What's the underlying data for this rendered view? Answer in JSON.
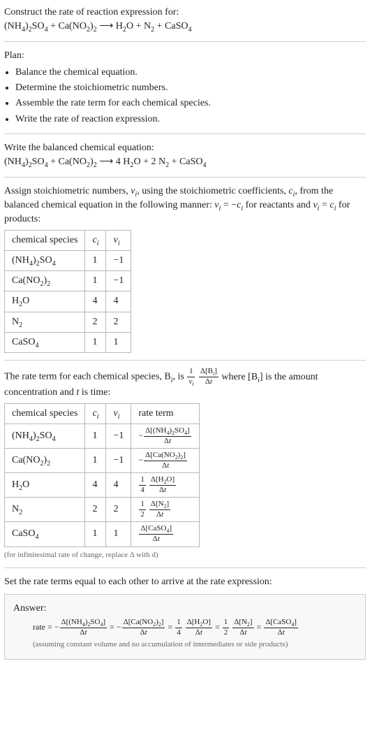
{
  "intro": {
    "title": "Construct the rate of reaction expression for:",
    "equation_html": "(NH<sub>4</sub>)<sub>2</sub>SO<sub>4</sub> + Ca(NO<sub>2</sub>)<sub>2</sub>  ⟶  H<sub>2</sub>O + N<sub>2</sub> + CaSO<sub>4</sub>"
  },
  "plan": {
    "heading": "Plan:",
    "items": [
      "Balance the chemical equation.",
      "Determine the stoichiometric numbers.",
      "Assemble the rate term for each chemical species.",
      "Write the rate of reaction expression."
    ]
  },
  "balanced": {
    "heading": "Write the balanced chemical equation:",
    "equation_html": "(NH<sub>4</sub>)<sub>2</sub>SO<sub>4</sub> + Ca(NO<sub>2</sub>)<sub>2</sub>  ⟶  4 H<sub>2</sub>O + 2 N<sub>2</sub> + CaSO<sub>4</sub>"
  },
  "assign": {
    "text_html": "Assign stoichiometric numbers, <span class='ital'>ν<sub>i</sub></span>, using the stoichiometric coefficients, <span class='ital'>c<sub>i</sub></span>, from the balanced chemical equation in the following manner: <span class='ital'>ν<sub>i</sub></span> = −<span class='ital'>c<sub>i</sub></span> for reactants and <span class='ital'>ν<sub>i</sub></span> = <span class='ital'>c<sub>i</sub></span> for products:",
    "table": {
      "headers": [
        "chemical species",
        "cᵢ",
        "νᵢ"
      ],
      "headers_html": [
        "chemical species",
        "<span class='ital'>c<sub>i</sub></span>",
        "<span class='ital'>ν<sub>i</sub></span>"
      ],
      "rows": [
        {
          "species_html": "(NH<sub>4</sub>)<sub>2</sub>SO<sub>4</sub>",
          "ci": "1",
          "vi": "−1"
        },
        {
          "species_html": "Ca(NO<sub>2</sub>)<sub>2</sub>",
          "ci": "1",
          "vi": "−1"
        },
        {
          "species_html": "H<sub>2</sub>O",
          "ci": "4",
          "vi": "4"
        },
        {
          "species_html": "N<sub>2</sub>",
          "ci": "2",
          "vi": "2"
        },
        {
          "species_html": "CaSO<sub>4</sub>",
          "ci": "1",
          "vi": "1"
        }
      ]
    }
  },
  "rateterm_intro": {
    "pre_html": "The rate term for each chemical species, B<span class='ub'><sub><span class='ital'>i</span></sub></span>, is ",
    "frac_left_num_html": "1",
    "frac_left_den_html": "<span class='ital'>ν<sub>i</sub></span>",
    "frac_right_num_html": "Δ[B<sub><span class='ital'>i</span></sub>]",
    "frac_right_den_html": "Δ<span class='ital'>t</span>",
    "post_html": " where [B<sub><span class='ital'>i</span></sub>] is the amount concentration and <span class='ital'>t</span> is time:"
  },
  "rate_table": {
    "headers_html": [
      "chemical species",
      "<span class='ital'>c<sub>i</sub></span>",
      "<span class='ital'>ν<sub>i</sub></span>",
      "rate term"
    ],
    "rows": [
      {
        "species_html": "(NH<sub>4</sub>)<sub>2</sub>SO<sub>4</sub>",
        "ci": "1",
        "vi": "−1",
        "rate": {
          "sign": "−",
          "coef_num": null,
          "coef_den": null,
          "num_html": "Δ[(NH<sub>4</sub>)<sub>2</sub>SO<sub>4</sub>]",
          "den_html": "Δ<span class='ital'>t</span>"
        }
      },
      {
        "species_html": "Ca(NO<sub>2</sub>)<sub>2</sub>",
        "ci": "1",
        "vi": "−1",
        "rate": {
          "sign": "−",
          "coef_num": null,
          "coef_den": null,
          "num_html": "Δ[Ca(NO<sub>2</sub>)<sub>2</sub>]",
          "den_html": "Δ<span class='ital'>t</span>"
        }
      },
      {
        "species_html": "H<sub>2</sub>O",
        "ci": "4",
        "vi": "4",
        "rate": {
          "sign": "",
          "coef_num": "1",
          "coef_den": "4",
          "num_html": "Δ[H<sub>2</sub>O]",
          "den_html": "Δ<span class='ital'>t</span>"
        }
      },
      {
        "species_html": "N<sub>2</sub>",
        "ci": "2",
        "vi": "2",
        "rate": {
          "sign": "",
          "coef_num": "1",
          "coef_den": "2",
          "num_html": "Δ[N<sub>2</sub>]",
          "den_html": "Δ<span class='ital'>t</span>"
        }
      },
      {
        "species_html": "CaSO<sub>4</sub>",
        "ci": "1",
        "vi": "1",
        "rate": {
          "sign": "",
          "coef_num": null,
          "coef_den": null,
          "num_html": "Δ[CaSO<sub>4</sub>]",
          "den_html": "Δ<span class='ital'>t</span>"
        }
      }
    ],
    "note": "(for infinitesimal rate of change, replace Δ with d)"
  },
  "final": {
    "heading": "Set the rate terms equal to each other to arrive at the rate expression:",
    "answer_label": "Answer:",
    "rate_prefix": "rate = ",
    "terms": [
      {
        "sign": "−",
        "coef_num": null,
        "coef_den": null,
        "num_html": "Δ[(NH<sub>4</sub>)<sub>2</sub>SO<sub>4</sub>]",
        "den_html": "Δ<span class='ital'>t</span>"
      },
      {
        "sign": "−",
        "coef_num": null,
        "coef_den": null,
        "num_html": "Δ[Ca(NO<sub>2</sub>)<sub>2</sub>]",
        "den_html": "Δ<span class='ital'>t</span>"
      },
      {
        "sign": "",
        "coef_num": "1",
        "coef_den": "4",
        "num_html": "Δ[H<sub>2</sub>O]",
        "den_html": "Δ<span class='ital'>t</span>"
      },
      {
        "sign": "",
        "coef_num": "1",
        "coef_den": "2",
        "num_html": "Δ[N<sub>2</sub>]",
        "den_html": "Δ<span class='ital'>t</span>"
      },
      {
        "sign": "",
        "coef_num": null,
        "coef_den": null,
        "num_html": "Δ[CaSO<sub>4</sub>]",
        "den_html": "Δ<span class='ital'>t</span>"
      }
    ],
    "note": "(assuming constant volume and no accumulation of intermediates or side products)"
  },
  "colors": {
    "text": "#222222",
    "rule": "#cfcfcf",
    "table_border": "#b8b8b8",
    "note": "#666666",
    "answer_bg": "#f8f8f8",
    "answer_border": "#cccccc",
    "page_bg": "#ffffff"
  }
}
